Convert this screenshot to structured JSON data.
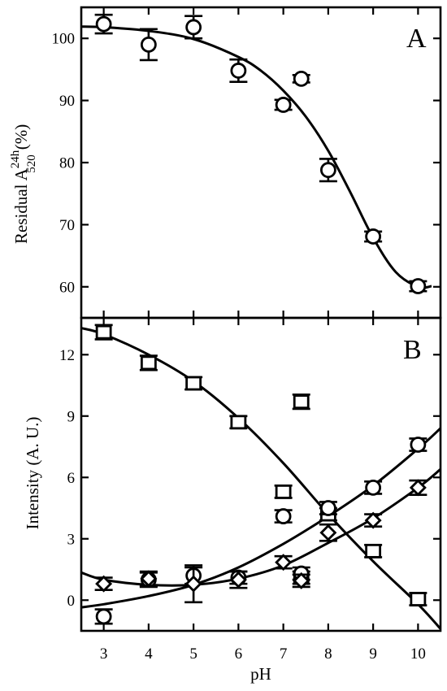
{
  "chart_data": [
    {
      "panel": "A",
      "type": "scatter",
      "ylabel_main": "Residual A",
      "ylabel_sup": "24h",
      "ylabel_sub": "520",
      "ylabel_unit": "(%)",
      "xlim": [
        2.5,
        10.5
      ],
      "ylim": [
        55,
        105
      ],
      "yticks": [
        60,
        70,
        80,
        90,
        100
      ],
      "series": [
        {
          "marker": "circle",
          "points": [
            {
              "x": 3,
              "y": 102.3,
              "err": 1.5
            },
            {
              "x": 4,
              "y": 99.0,
              "err": 2.5
            },
            {
              "x": 5,
              "y": 101.8,
              "err": 1.8
            },
            {
              "x": 6,
              "y": 94.8,
              "err": 1.8
            },
            {
              "x": 7,
              "y": 89.3,
              "err": 0.8
            },
            {
              "x": 7.4,
              "y": 93.5,
              "err": 0.6
            },
            {
              "x": 8,
              "y": 78.8,
              "err": 1.8
            },
            {
              "x": 9,
              "y": 68.1,
              "err": 0.8
            },
            {
              "x": 10,
              "y": 60.1,
              "err": 0.8
            }
          ],
          "fit": [
            [
              2.5,
              101.9
            ],
            [
              3,
              101.8
            ],
            [
              4,
              101.2
            ],
            [
              5,
              99.9
            ],
            [
              6,
              97.0
            ],
            [
              6.5,
              94.8
            ],
            [
              7,
              91.6
            ],
            [
              7.5,
              87.4
            ],
            [
              8,
              81.9
            ],
            [
              8.5,
              75.1
            ],
            [
              9,
              67.9
            ],
            [
              9.5,
              62.4
            ],
            [
              10,
              60.0
            ],
            [
              10.3,
              60.1
            ]
          ]
        }
      ]
    },
    {
      "panel": "B",
      "type": "scatter",
      "xlabel": "pH",
      "ylabel": "Intensity (A. U.)",
      "xlim": [
        2.5,
        10.5
      ],
      "ylim": [
        -1.5,
        13.8
      ],
      "xticks": [
        3,
        4,
        5,
        6,
        7,
        8,
        9,
        10
      ],
      "yticks": [
        0,
        3,
        6,
        9,
        12
      ],
      "series": [
        {
          "marker": "square",
          "points": [
            {
              "x": 3,
              "y": 13.1,
              "err": 0.35
            },
            {
              "x": 4,
              "y": 11.6,
              "err": 0.35
            },
            {
              "x": 5,
              "y": 10.6,
              "err": 0.3
            },
            {
              "x": 6,
              "y": 8.7,
              "err": 0.3
            },
            {
              "x": 7,
              "y": 5.3,
              "err": 0.3
            },
            {
              "x": 7.4,
              "y": 9.7,
              "err": 0.35
            },
            {
              "x": 7.4,
              "y": 1.1,
              "err": 0.3
            },
            {
              "x": 8,
              "y": 4.2,
              "err": 0.3
            },
            {
              "x": 9,
              "y": 2.4,
              "err": 0.3
            },
            {
              "x": 10,
              "y": 0.05,
              "err": 0.3
            }
          ],
          "fit": [
            [
              2.5,
              13.3
            ],
            [
              3,
              13.0
            ],
            [
              4,
              12.0
            ],
            [
              5,
              10.7
            ],
            [
              6,
              8.9
            ],
            [
              7,
              6.7
            ],
            [
              8,
              4.2
            ],
            [
              9,
              1.9
            ],
            [
              10,
              -0.2
            ],
            [
              10.5,
              -1.4
            ]
          ]
        },
        {
          "marker": "circle",
          "points": [
            {
              "x": 3,
              "y": -0.8,
              "err": 0.35
            },
            {
              "x": 4,
              "y": 1.0,
              "err": 0.35
            },
            {
              "x": 5,
              "y": 1.2,
              "err": 0.4
            },
            {
              "x": 6,
              "y": 1.1,
              "err": 0.3
            },
            {
              "x": 7,
              "y": 4.1,
              "err": 0.3
            },
            {
              "x": 7.4,
              "y": 1.3,
              "err": 0.3
            },
            {
              "x": 8,
              "y": 4.5,
              "err": 0.3
            },
            {
              "x": 9,
              "y": 5.5,
              "err": 0.3
            },
            {
              "x": 10,
              "y": 7.6,
              "err": 0.3
            }
          ],
          "fit": [
            [
              2.5,
              -0.35
            ],
            [
              3,
              -0.2
            ],
            [
              4,
              0.2
            ],
            [
              5,
              0.75
            ],
            [
              6,
              1.6
            ],
            [
              7,
              2.75
            ],
            [
              8,
              4.1
            ],
            [
              9,
              5.6
            ],
            [
              10,
              7.4
            ],
            [
              10.5,
              8.4
            ]
          ]
        },
        {
          "marker": "diamond",
          "points": [
            {
              "x": 3,
              "y": 0.8,
              "err": 0.3
            },
            {
              "x": 4,
              "y": 1.05,
              "err": 0.35
            },
            {
              "x": 5,
              "y": 0.8,
              "err": 0.9
            },
            {
              "x": 6,
              "y": 1.0,
              "err": 0.4
            },
            {
              "x": 7,
              "y": 1.85,
              "err": 0.3
            },
            {
              "x": 7.4,
              "y": 0.95,
              "err": 0.3
            },
            {
              "x": 8,
              "y": 3.3,
              "err": 0.4
            },
            {
              "x": 9,
              "y": 3.9,
              "err": 0.3
            },
            {
              "x": 10,
              "y": 5.5,
              "err": 0.35
            }
          ],
          "fit": [
            [
              2.5,
              1.35
            ],
            [
              3,
              1.0
            ],
            [
              4,
              0.75
            ],
            [
              5,
              0.75
            ],
            [
              6,
              1.05
            ],
            [
              7,
              1.7
            ],
            [
              8,
              2.8
            ],
            [
              9,
              4.0
            ],
            [
              10,
              5.5
            ],
            [
              10.5,
              6.4
            ]
          ]
        }
      ]
    }
  ]
}
